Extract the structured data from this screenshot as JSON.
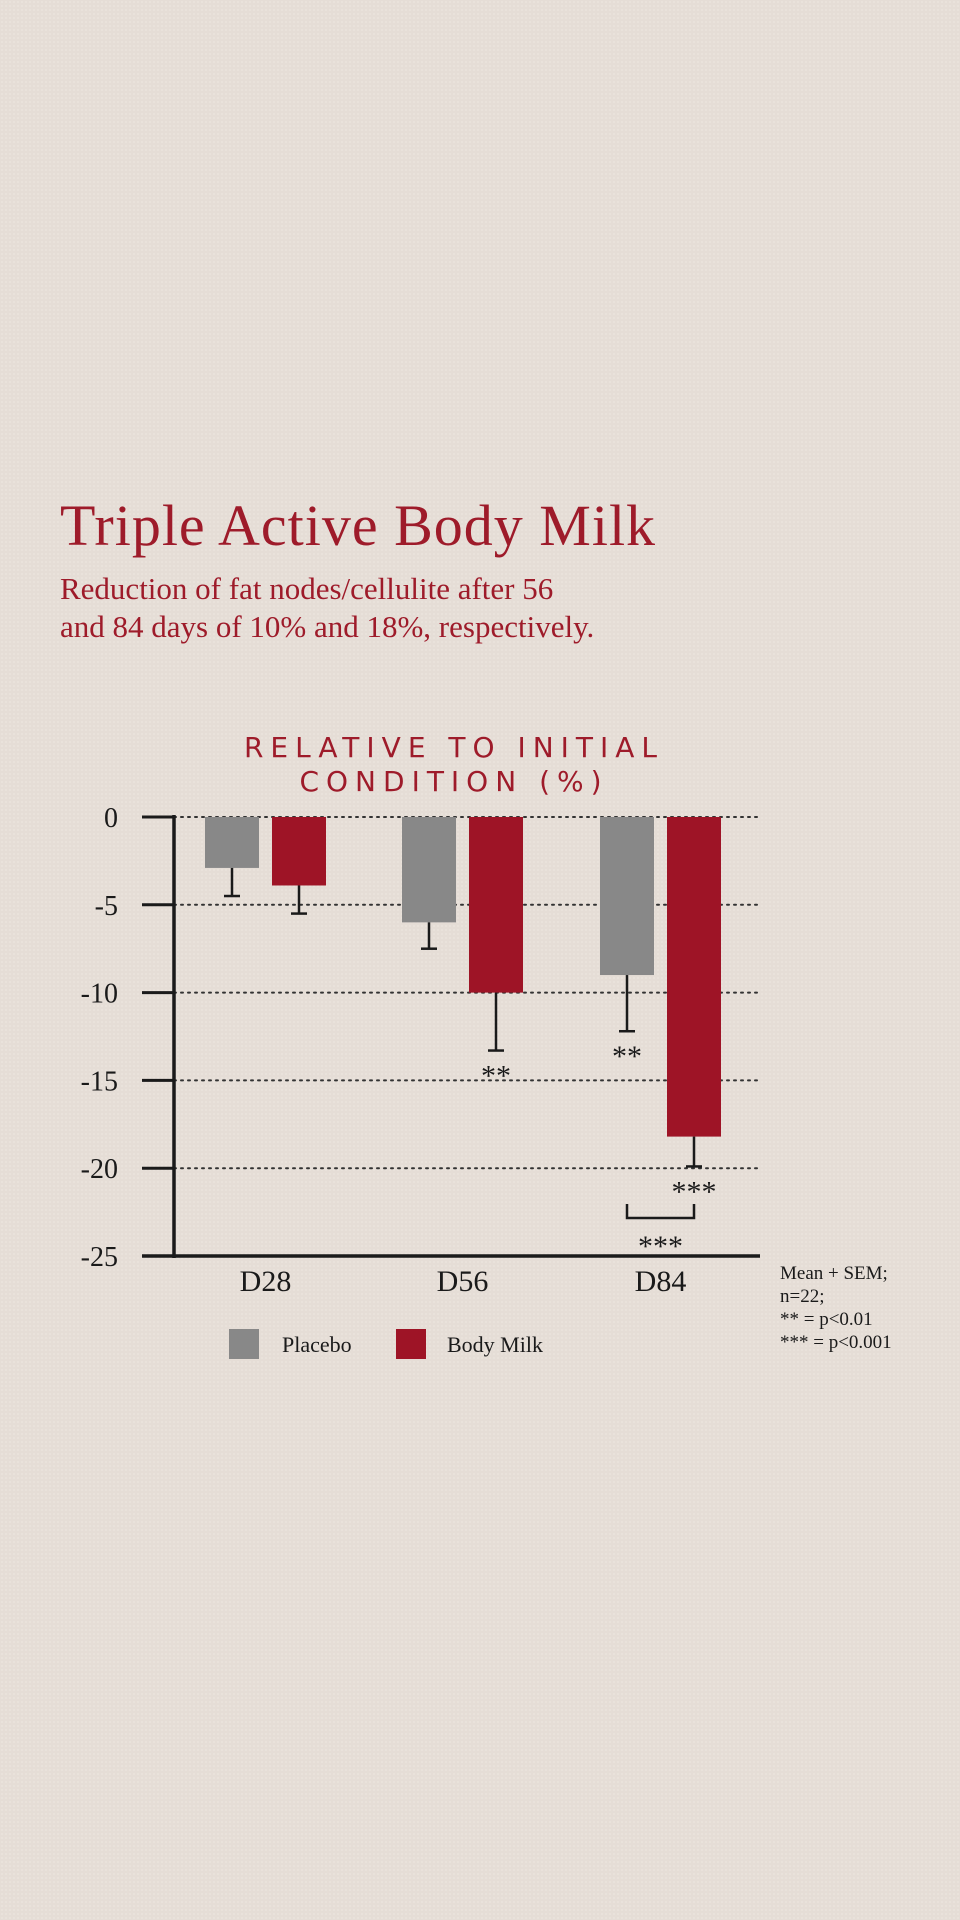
{
  "title": "Triple Active Body Milk",
  "subtitle": [
    "Reduction of fat nodes/cellulite after 56",
    "and 84 days of 10% and 18%, respectively."
  ],
  "notes": [
    "Mean + SEM;",
    "n=22;",
    "**   = p<0.01",
    "*** = p<0.001"
  ],
  "colors": {
    "placebo": "#888888",
    "body_milk": "#9e1426",
    "accent": "#9e1b2a"
  },
  "chart_data": {
    "type": "bar",
    "title_lines": [
      "RELATIVE TO INITIAL",
      "CONDITION (%)"
    ],
    "categories": [
      "D28",
      "D56",
      "D84"
    ],
    "series": [
      {
        "name": "Placebo",
        "values": [
          -2.9,
          -6.0,
          -9.0
        ],
        "errors": [
          1.6,
          1.5,
          3.2
        ],
        "significance": [
          "",
          "",
          "**"
        ]
      },
      {
        "name": "Body Milk",
        "values": [
          -3.9,
          -10.0,
          -18.2
        ],
        "errors": [
          1.6,
          3.3,
          1.7
        ],
        "significance": [
          "",
          "**",
          "***"
        ]
      }
    ],
    "comparison": {
      "category": "D84",
      "label": "***"
    },
    "yticks": [
      0,
      -5,
      -10,
      -15,
      -20,
      -25
    ],
    "ylim": [
      -25,
      0
    ],
    "gridlines": "dotted",
    "legend": "bottom"
  }
}
